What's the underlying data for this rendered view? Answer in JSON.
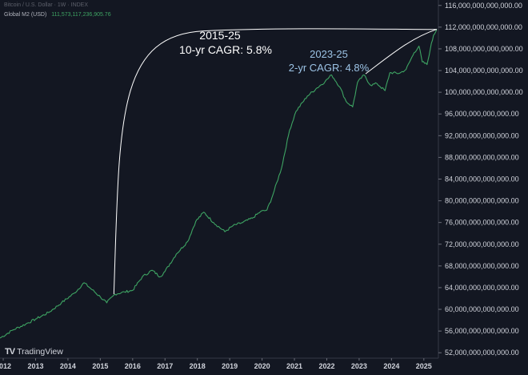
{
  "header": {
    "symbol_line": "Bitcoin / U.S. Dollar · 1W · INDEX",
    "series_label": "Global M2 (USD)",
    "series_value": "111,573,117,236,905.76"
  },
  "branding": {
    "logo_text": "TradingView",
    "logo_icon": "tradingview-icon"
  },
  "colors": {
    "background": "#131722",
    "series": "#3ea463",
    "annotation_white": "#ffffff",
    "annotation_blue": "#9cc3e5"
  },
  "annotations": {
    "a1_line1": "2015-25",
    "a1_line2": "10-yr CAGR: 5.8%",
    "a2_line1": "2023-25",
    "a2_line2": "2-yr CAGR: 4.8%"
  },
  "chart_data": {
    "type": "line",
    "title": "",
    "xlabel": "",
    "ylabel": "",
    "xlim": [
      2011.9,
      2025.45
    ],
    "ylim": [
      51000000000000,
      117000000000000
    ],
    "x_ticks": [
      "2012",
      "2013",
      "2014",
      "2015",
      "2016",
      "2017",
      "2018",
      "2019",
      "2020",
      "2021",
      "2022",
      "2023",
      "2024",
      "2025"
    ],
    "y_ticks": [
      "52,000,000,000,000.00",
      "56,000,000,000,000.00",
      "60,000,000,000,000.00",
      "64,000,000,000,000.00",
      "68,000,000,000,000.00",
      "72,000,000,000,000.00",
      "76,000,000,000,000.00",
      "80,000,000,000,000.00",
      "84,000,000,000,000.00",
      "88,000,000,000,000.00",
      "92,000,000,000,000.00",
      "96,000,000,000,000.00",
      "100,000,000,000,000.00",
      "104,000,000,000,000.00",
      "108,000,000,000,000.00",
      "112,000,000,000,000.00",
      "116,000,000,000,000.00"
    ],
    "series": [
      {
        "name": "Global M2 (USD)",
        "points": [
          [
            2011.9,
            54700000000000.0
          ],
          [
            2012.3,
            56200000000000.0
          ],
          [
            2012.7,
            57300000000000.0
          ],
          [
            2013.0,
            58200000000000.0
          ],
          [
            2013.4,
            59400000000000.0
          ],
          [
            2013.8,
            61200000000000.0
          ],
          [
            2014.2,
            63000000000000.0
          ],
          [
            2014.5,
            64900000000000.0
          ],
          [
            2014.75,
            63600000000000.0
          ],
          [
            2015.0,
            62300000000000.0
          ],
          [
            2015.2,
            61200000000000.0
          ],
          [
            2015.45,
            62800000000000.0
          ],
          [
            2015.75,
            63200000000000.0
          ],
          [
            2016.0,
            63500000000000.0
          ],
          [
            2016.3,
            66000000000000.0
          ],
          [
            2016.6,
            67200000000000.0
          ],
          [
            2016.85,
            66000000000000.0
          ],
          [
            2017.0,
            67000000000000.0
          ],
          [
            2017.35,
            70200000000000.0
          ],
          [
            2017.7,
            72500000000000.0
          ],
          [
            2017.95,
            76200000000000.0
          ],
          [
            2018.2,
            77900000000000.0
          ],
          [
            2018.5,
            76000000000000.0
          ],
          [
            2018.85,
            74300000000000.0
          ],
          [
            2019.1,
            75400000000000.0
          ],
          [
            2019.4,
            76000000000000.0
          ],
          [
            2019.7,
            76800000000000.0
          ],
          [
            2019.95,
            78000000000000.0
          ],
          [
            2020.15,
            78300000000000.0
          ],
          [
            2020.3,
            80500000000000.0
          ],
          [
            2020.6,
            86000000000000.0
          ],
          [
            2020.85,
            93000000000000.0
          ],
          [
            2021.05,
            96500000000000.0
          ],
          [
            2021.4,
            99300000000000.0
          ],
          [
            2021.7,
            100800000000000.0
          ],
          [
            2021.95,
            102000000000000.0
          ],
          [
            2022.15,
            103200000000000.0
          ],
          [
            2022.4,
            101000000000000.0
          ],
          [
            2022.6,
            98300000000000.0
          ],
          [
            2022.8,
            97300000000000.0
          ],
          [
            2022.95,
            101800000000000.0
          ],
          [
            2023.15,
            103200000000000.0
          ],
          [
            2023.35,
            101300000000000.0
          ],
          [
            2023.55,
            101600000000000.0
          ],
          [
            2023.8,
            100300000000000.0
          ],
          [
            2023.95,
            103600000000000.0
          ],
          [
            2024.25,
            103500000000000.0
          ],
          [
            2024.45,
            104200000000000.0
          ],
          [
            2024.7,
            107300000000000.0
          ],
          [
            2024.85,
            108500000000000.0
          ],
          [
            2024.95,
            105600000000000.0
          ],
          [
            2025.1,
            105100000000000.0
          ],
          [
            2025.2,
            108000000000000.0
          ],
          [
            2025.3,
            110500000000000.0
          ],
          [
            2025.4,
            111600000000000.0
          ]
        ]
      }
    ]
  }
}
